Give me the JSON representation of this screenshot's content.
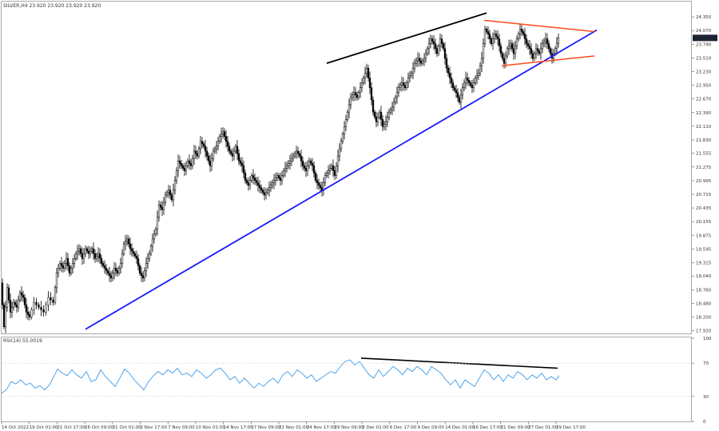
{
  "header": {
    "title": "SILVER,H4 23.920 23.920 23.920 23.920",
    "rsi_label": "RSI(14) 55.0019",
    "current_price": "23.920"
  },
  "colors": {
    "candle": "#000000",
    "support_line": "#1a1aff",
    "upper_line": "#000000",
    "triangle": "#ff4a1a",
    "rsi_line": "#3d9be9",
    "rsi_divergence": "#000000",
    "price_tag": "#1a2233"
  },
  "chart_data": [
    {
      "type": "candlestick",
      "symbol": "SILVER",
      "timeframe": "H4",
      "ylim": [
        17.88,
        24.5
      ],
      "y_ticks": [
        24.35,
        24.07,
        23.79,
        23.51,
        23.23,
        22.95,
        22.67,
        22.39,
        22.11,
        21.83,
        21.555,
        21.275,
        20.995,
        20.715,
        20.435,
        20.155,
        19.875,
        19.595,
        19.315,
        19.04,
        18.76,
        18.48,
        18.2,
        17.92
      ],
      "y_tick_labels": [
        "24.350",
        "24.070",
        "23.790",
        "23.510",
        "23.230",
        "22.950",
        "22.670",
        "22.390",
        "22.110",
        "21.830",
        "21.555",
        "21.275",
        "20.995",
        "20.715",
        "20.435",
        "20.155",
        "19.875",
        "19.595",
        "19.315",
        "19.040",
        "18.760",
        "18.480",
        "18.200",
        "17.920"
      ],
      "x_ticks": [
        "14 Oct 2022",
        "19 Oct 01:00",
        "21 Oct 17:00",
        "26 Oct 09:00",
        "31 Oct 01:00",
        "2 Nov 17:00",
        "7 Nov 09:00",
        "10 Nov 01:00",
        "14 Nov 17:00",
        "17 Nov 09:00",
        "22 Nov 01:00",
        "24 Nov 17:00",
        "29 Nov 09:00",
        "2 Dec 01:00",
        "6 Dec 17:00",
        "9 Dec 09:00",
        "14 Dec 01:00",
        "16 Dec 17:00",
        "21 Dec 09:00",
        "27 Dec 01:00",
        "29 Dec 17:00"
      ],
      "price_path": [
        [
          0,
          18.9
        ],
        [
          4,
          18.0
        ],
        [
          8,
          18.8
        ],
        [
          12,
          18.3
        ],
        [
          16,
          18.5
        ],
        [
          20,
          18.4
        ],
        [
          24,
          18.7
        ],
        [
          28,
          18.6
        ],
        [
          32,
          18.3
        ],
        [
          36,
          18.2
        ],
        [
          42,
          18.5
        ],
        [
          48,
          18.4
        ],
        [
          54,
          18.3
        ],
        [
          60,
          18.6
        ],
        [
          66,
          18.5
        ],
        [
          70,
          19.1
        ],
        [
          74,
          19.3
        ],
        [
          78,
          19.2
        ],
        [
          82,
          19.4
        ],
        [
          86,
          19.1
        ],
        [
          90,
          19.3
        ],
        [
          94,
          19.5
        ],
        [
          98,
          19.6
        ],
        [
          102,
          19.4
        ],
        [
          106,
          19.6
        ],
        [
          110,
          19.5
        ],
        [
          114,
          19.6
        ],
        [
          118,
          19.4
        ],
        [
          122,
          19.5
        ],
        [
          126,
          19.3
        ],
        [
          130,
          19.2
        ],
        [
          134,
          19.1
        ],
        [
          138,
          19.0
        ],
        [
          142,
          19.2
        ],
        [
          146,
          19.1
        ],
        [
          150,
          19.3
        ],
        [
          154,
          19.7
        ],
        [
          158,
          19.8
        ],
        [
          162,
          19.6
        ],
        [
          166,
          19.5
        ],
        [
          170,
          19.4
        ],
        [
          174,
          19.1
        ],
        [
          178,
          19.0
        ],
        [
          182,
          19.3
        ],
        [
          186,
          19.5
        ],
        [
          190,
          19.8
        ],
        [
          194,
          20.0
        ],
        [
          198,
          20.5
        ],
        [
          202,
          20.4
        ],
        [
          206,
          20.7
        ],
        [
          210,
          20.8
        ],
        [
          214,
          20.6
        ],
        [
          218,
          21.0
        ],
        [
          222,
          21.4
        ],
        [
          226,
          21.3
        ],
        [
          230,
          21.2
        ],
        [
          234,
          21.4
        ],
        [
          238,
          21.3
        ],
        [
          242,
          21.6
        ],
        [
          246,
          21.5
        ],
        [
          250,
          21.8
        ],
        [
          254,
          21.7
        ],
        [
          258,
          21.5
        ],
        [
          262,
          21.3
        ],
        [
          266,
          21.6
        ],
        [
          270,
          21.7
        ],
        [
          274,
          21.9
        ],
        [
          278,
          22.0
        ],
        [
          282,
          21.8
        ],
        [
          286,
          21.6
        ],
        [
          290,
          21.5
        ],
        [
          294,
          21.7
        ],
        [
          298,
          21.4
        ],
        [
          302,
          21.3
        ],
        [
          306,
          21.0
        ],
        [
          310,
          20.9
        ],
        [
          314,
          21.1
        ],
        [
          318,
          21.0
        ],
        [
          322,
          20.9
        ],
        [
          326,
          20.8
        ],
        [
          330,
          20.7
        ],
        [
          334,
          20.8
        ],
        [
          338,
          20.9
        ],
        [
          342,
          21.0
        ],
        [
          346,
          21.1
        ],
        [
          350,
          21.0
        ],
        [
          354,
          21.2
        ],
        [
          358,
          21.3
        ],
        [
          362,
          21.4
        ],
        [
          366,
          21.5
        ],
        [
          370,
          21.6
        ],
        [
          374,
          21.5
        ],
        [
          378,
          21.3
        ],
        [
          382,
          21.2
        ],
        [
          386,
          21.4
        ],
        [
          390,
          21.3
        ],
        [
          394,
          21.0
        ],
        [
          398,
          20.9
        ],
        [
          402,
          20.8
        ],
        [
          406,
          21.1
        ],
        [
          410,
          21.2
        ],
        [
          414,
          21.3
        ],
        [
          418,
          21.1
        ],
        [
          422,
          21.5
        ],
        [
          426,
          21.8
        ],
        [
          430,
          22.1
        ],
        [
          434,
          22.4
        ],
        [
          438,
          22.7
        ],
        [
          442,
          22.8
        ],
        [
          446,
          22.7
        ],
        [
          450,
          22.9
        ],
        [
          454,
          23.1
        ],
        [
          458,
          23.3
        ],
        [
          462,
          22.9
        ],
        [
          466,
          22.4
        ],
        [
          470,
          22.2
        ],
        [
          474,
          22.4
        ],
        [
          478,
          22.1
        ],
        [
          482,
          22.2
        ],
        [
          486,
          22.4
        ],
        [
          490,
          22.5
        ],
        [
          494,
          22.7
        ],
        [
          498,
          22.9
        ],
        [
          502,
          23.0
        ],
        [
          506,
          22.9
        ],
        [
          510,
          23.1
        ],
        [
          514,
          23.2
        ],
        [
          518,
          23.4
        ],
        [
          522,
          23.5
        ],
        [
          526,
          23.4
        ],
        [
          530,
          23.5
        ],
        [
          534,
          23.7
        ],
        [
          538,
          23.9
        ],
        [
          542,
          23.8
        ],
        [
          546,
          23.6
        ],
        [
          550,
          23.9
        ],
        [
          554,
          23.7
        ],
        [
          558,
          23.3
        ],
        [
          562,
          23.1
        ],
        [
          566,
          22.9
        ],
        [
          570,
          22.8
        ],
        [
          574,
          22.6
        ],
        [
          578,
          22.9
        ],
        [
          582,
          23.1
        ],
        [
          586,
          23.0
        ],
        [
          590,
          22.9
        ],
        [
          594,
          23.1
        ],
        [
          598,
          23.2
        ],
        [
          602,
          23.5
        ],
        [
          606,
          24.1
        ],
        [
          610,
          24.0
        ],
        [
          614,
          23.8
        ],
        [
          618,
          24.0
        ],
        [
          622,
          23.9
        ],
        [
          626,
          23.6
        ],
        [
          630,
          23.4
        ],
        [
          634,
          23.7
        ],
        [
          638,
          23.8
        ],
        [
          642,
          23.6
        ],
        [
          646,
          23.9
        ],
        [
          650,
          24.1
        ],
        [
          654,
          24.0
        ],
        [
          658,
          23.8
        ],
        [
          662,
          23.7
        ],
        [
          666,
          23.5
        ],
        [
          670,
          23.7
        ],
        [
          674,
          23.6
        ],
        [
          678,
          23.8
        ],
        [
          682,
          23.9
        ],
        [
          686,
          23.7
        ],
        [
          690,
          23.5
        ],
        [
          694,
          23.7
        ],
        [
          698,
          23.92
        ]
      ],
      "support_line": {
        "from": [
          105,
          17.95
        ],
        "to": [
          745,
          24.08
        ]
      },
      "upper_line": {
        "from": [
          407,
          23.4
        ],
        "to": [
          607,
          24.43
        ]
      },
      "triangle_upper": {
        "from": [
          604,
          24.28
        ],
        "to": [
          742,
          24.05
        ]
      },
      "triangle_lower": {
        "from": [
          626,
          23.35
        ],
        "to": [
          742,
          23.55
        ]
      }
    },
    {
      "type": "line",
      "name": "RSI(14)",
      "ylim": [
        0,
        100
      ],
      "y_ticks": [
        100,
        70,
        30,
        0
      ],
      "y_tick_labels": [
        "100",
        "70",
        "30",
        "0"
      ],
      "rsi_path": [
        [
          0,
          34
        ],
        [
          6,
          38
        ],
        [
          12,
          48
        ],
        [
          18,
          45
        ],
        [
          24,
          50
        ],
        [
          30,
          44
        ],
        [
          36,
          46
        ],
        [
          42,
          40
        ],
        [
          48,
          43
        ],
        [
          54,
          38
        ],
        [
          60,
          44
        ],
        [
          66,
          55
        ],
        [
          70,
          63
        ],
        [
          76,
          58
        ],
        [
          82,
          55
        ],
        [
          88,
          62
        ],
        [
          94,
          56
        ],
        [
          100,
          52
        ],
        [
          106,
          60
        ],
        [
          112,
          48
        ],
        [
          118,
          50
        ],
        [
          124,
          62
        ],
        [
          130,
          54
        ],
        [
          136,
          48
        ],
        [
          142,
          42
        ],
        [
          148,
          52
        ],
        [
          154,
          63
        ],
        [
          160,
          58
        ],
        [
          166,
          50
        ],
        [
          172,
          44
        ],
        [
          178,
          38
        ],
        [
          184,
          48
        ],
        [
          190,
          55
        ],
        [
          196,
          60
        ],
        [
          202,
          56
        ],
        [
          208,
          62
        ],
        [
          214,
          58
        ],
        [
          220,
          64
        ],
        [
          226,
          56
        ],
        [
          232,
          58
        ],
        [
          238,
          54
        ],
        [
          244,
          62
        ],
        [
          250,
          58
        ],
        [
          256,
          52
        ],
        [
          262,
          56
        ],
        [
          268,
          62
        ],
        [
          274,
          64
        ],
        [
          280,
          58
        ],
        [
          286,
          50
        ],
        [
          292,
          54
        ],
        [
          298,
          46
        ],
        [
          304,
          52
        ],
        [
          310,
          46
        ],
        [
          316,
          40
        ],
        [
          322,
          46
        ],
        [
          328,
          42
        ],
        [
          334,
          48
        ],
        [
          340,
          52
        ],
        [
          346,
          46
        ],
        [
          352,
          56
        ],
        [
          358,
          60
        ],
        [
          364,
          54
        ],
        [
          370,
          62
        ],
        [
          376,
          58
        ],
        [
          382,
          52
        ],
        [
          388,
          56
        ],
        [
          394,
          48
        ],
        [
          400,
          52
        ],
        [
          406,
          56
        ],
        [
          412,
          60
        ],
        [
          418,
          58
        ],
        [
          424,
          66
        ],
        [
          430,
          72
        ],
        [
          436,
          74
        ],
        [
          442,
          68
        ],
        [
          448,
          72
        ],
        [
          454,
          64
        ],
        [
          460,
          56
        ],
        [
          466,
          52
        ],
        [
          472,
          62
        ],
        [
          478,
          54
        ],
        [
          484,
          60
        ],
        [
          490,
          66
        ],
        [
          496,
          62
        ],
        [
          502,
          56
        ],
        [
          508,
          64
        ],
        [
          514,
          60
        ],
        [
          520,
          66
        ],
        [
          526,
          62
        ],
        [
          532,
          56
        ],
        [
          538,
          66
        ],
        [
          544,
          62
        ],
        [
          550,
          58
        ],
        [
          556,
          50
        ],
        [
          562,
          44
        ],
        [
          568,
          50
        ],
        [
          574,
          40
        ],
        [
          580,
          50
        ],
        [
          586,
          46
        ],
        [
          592,
          42
        ],
        [
          598,
          52
        ],
        [
          604,
          62
        ],
        [
          610,
          58
        ],
        [
          616,
          50
        ],
        [
          622,
          56
        ],
        [
          628,
          48
        ],
        [
          634,
          56
        ],
        [
          640,
          52
        ],
        [
          646,
          60
        ],
        [
          652,
          56
        ],
        [
          658,
          50
        ],
        [
          664,
          56
        ],
        [
          670,
          52
        ],
        [
          676,
          58
        ],
        [
          682,
          50
        ],
        [
          688,
          54
        ],
        [
          694,
          50
        ],
        [
          698,
          55
        ]
      ],
      "divergence_line": {
        "from": [
          450,
          76
        ],
        "to": [
          696,
          64
        ]
      }
    }
  ]
}
